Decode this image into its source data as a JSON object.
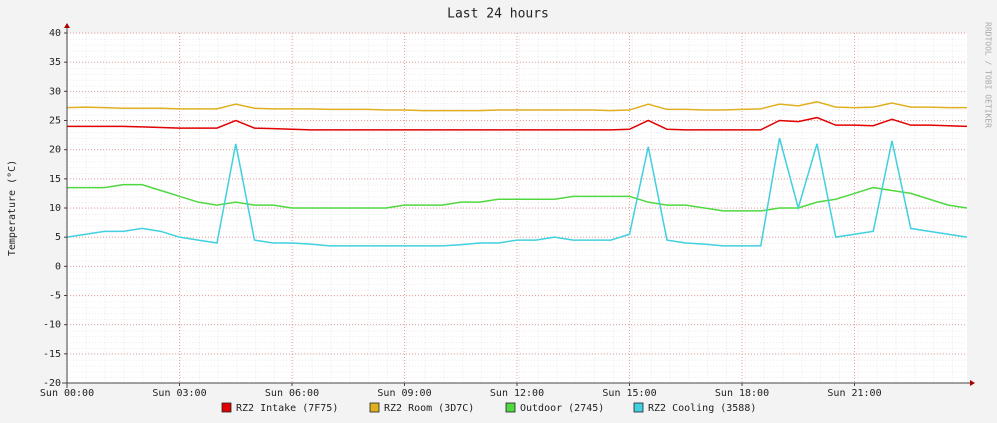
{
  "chart_data": {
    "type": "line",
    "title": "Last 24 hours",
    "y_label": "Temperature (°C)",
    "watermark": "RRDTOOL / TOBI OETIKER",
    "x": [
      0,
      0.5,
      1,
      1.5,
      2,
      2.5,
      3,
      3.5,
      4,
      4.5,
      5,
      5.5,
      6,
      6.5,
      7,
      7.5,
      8,
      8.5,
      9,
      9.5,
      10,
      10.5,
      11,
      11.5,
      12,
      12.5,
      13,
      13.5,
      14,
      14.5,
      15,
      15.5,
      16,
      16.5,
      17,
      17.5,
      18,
      18.5,
      19,
      19.5,
      20,
      20.5,
      21,
      21.5,
      22,
      22.5,
      23,
      23.5,
      24
    ],
    "xlim": [
      0,
      24
    ],
    "xticks": [
      {
        "value": 0,
        "label": "Sun 00:00"
      },
      {
        "value": 3,
        "label": "Sun 03:00"
      },
      {
        "value": 6,
        "label": "Sun 06:00"
      },
      {
        "value": 9,
        "label": "Sun 09:00"
      },
      {
        "value": 12,
        "label": "Sun 12:00"
      },
      {
        "value": 15,
        "label": "Sun 15:00"
      },
      {
        "value": 18,
        "label": "Sun 18:00"
      },
      {
        "value": 21,
        "label": "Sun 21:00"
      }
    ],
    "ylim": [
      -20,
      40
    ],
    "yticks": [
      -20,
      -15,
      -10,
      -5,
      0,
      5,
      10,
      15,
      20,
      25,
      30,
      35,
      40
    ],
    "grid": true,
    "series": [
      {
        "name": "RZ2 Intake (7F75)",
        "color": "#e00000",
        "values": [
          24,
          24,
          24,
          24,
          23.9,
          23.8,
          23.7,
          23.7,
          23.7,
          25,
          23.7,
          23.6,
          23.5,
          23.4,
          23.4,
          23.4,
          23.4,
          23.4,
          23.4,
          23.4,
          23.4,
          23.4,
          23.4,
          23.4,
          23.4,
          23.4,
          23.4,
          23.4,
          23.4,
          23.4,
          23.5,
          25,
          23.5,
          23.4,
          23.4,
          23.4,
          23.4,
          23.4,
          25,
          24.8,
          25.5,
          24.2,
          24.2,
          24.1,
          25.2,
          24.2,
          24.2,
          24.1,
          24
        ]
      },
      {
        "name": "RZ2 Room (3D7C)",
        "color": "#e0b020",
        "values": [
          27.2,
          27.3,
          27.2,
          27.1,
          27.1,
          27.1,
          27,
          27,
          27,
          27.8,
          27.1,
          27,
          27,
          27,
          26.9,
          26.9,
          26.9,
          26.8,
          26.8,
          26.7,
          26.7,
          26.7,
          26.7,
          26.8,
          26.8,
          26.8,
          26.8,
          26.8,
          26.8,
          26.7,
          26.8,
          27.8,
          26.9,
          26.9,
          26.8,
          26.8,
          26.9,
          27,
          27.8,
          27.5,
          28.2,
          27.3,
          27.2,
          27.3,
          28,
          27.3,
          27.3,
          27.2,
          27.2
        ]
      },
      {
        "name": "Outdoor (2745)",
        "color": "#50d840",
        "values": [
          13.5,
          13.5,
          13.5,
          14,
          14,
          13,
          12,
          11,
          10.5,
          11,
          10.5,
          10.5,
          10,
          10,
          10,
          10,
          10,
          10,
          10.5,
          10.5,
          10.5,
          11,
          11,
          11.5,
          11.5,
          11.5,
          11.5,
          12,
          12,
          12,
          12,
          11,
          10.5,
          10.5,
          10,
          9.5,
          9.5,
          9.5,
          10,
          10,
          11,
          11.5,
          12.5,
          13.5,
          13,
          12.5,
          11.5,
          10.5,
          10
        ]
      },
      {
        "name": "RZ2 Cooling (3588)",
        "color": "#40d0e0",
        "values": [
          5,
          5.5,
          6,
          6,
          6.5,
          6,
          5,
          4.5,
          4,
          21,
          4.5,
          4,
          4,
          3.8,
          3.5,
          3.5,
          3.5,
          3.5,
          3.5,
          3.5,
          3.5,
          3.7,
          4,
          4,
          4.5,
          4.5,
          5,
          4.5,
          4.5,
          4.5,
          5.5,
          20.5,
          4.5,
          4,
          3.8,
          3.5,
          3.5,
          3.5,
          22,
          10,
          21,
          5,
          5.5,
          6,
          21.5,
          6.5,
          6,
          5.5,
          5
        ]
      }
    ]
  }
}
